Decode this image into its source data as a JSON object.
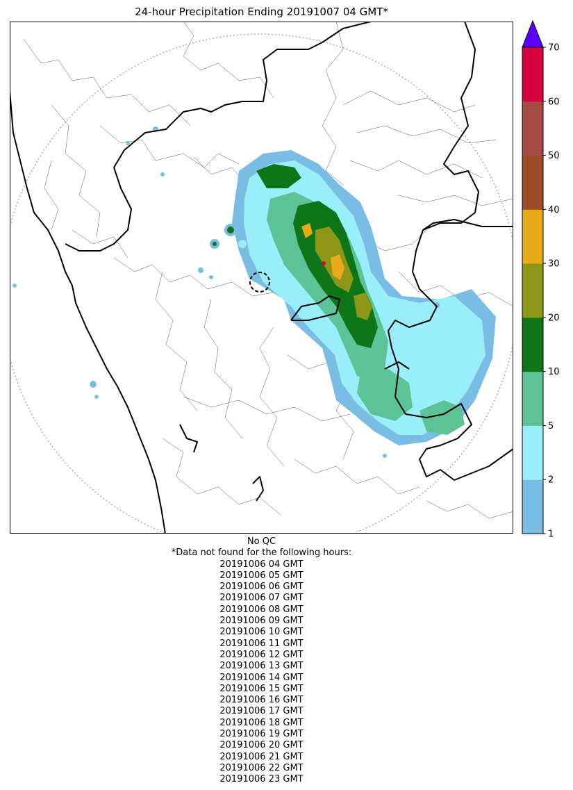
{
  "title": "24-hour Precipitation Ending 20191007 04 GMT*",
  "colorbar": {
    "ticks": [
      "1",
      "2",
      "5",
      "10",
      "20",
      "30",
      "40",
      "50",
      "60",
      "70"
    ],
    "bin_colors": [
      "#79bde4",
      "#99eef9",
      "#5cc396",
      "#0f7519",
      "#8e9618",
      "#e7aa19",
      "#9e4d29",
      "#a44a44",
      "#d6003f"
    ],
    "overflow_color": "#5a00ff"
  },
  "colors": {
    "light_blue": "#79bde4",
    "cyan": "#99eef9",
    "light_green": "#5cc396",
    "dark_green": "#0f7519",
    "olive": "#8e9618",
    "orange": "#e7aa19",
    "red": "#d6003f"
  },
  "notes": {
    "qc": "No QC",
    "header": "*Data not found for the following hours:",
    "hours": [
      "20191006 04 GMT",
      "20191006 05 GMT",
      "20191006 06 GMT",
      "20191006 07 GMT",
      "20191006 08 GMT",
      "20191006 09 GMT",
      "20191006 10 GMT",
      "20191006 11 GMT",
      "20191006 12 GMT",
      "20191006 13 GMT",
      "20191006 14 GMT",
      "20191006 15 GMT",
      "20191006 16 GMT",
      "20191006 17 GMT",
      "20191006 18 GMT",
      "20191006 19 GMT",
      "20191006 20 GMT",
      "20191006 21 GMT",
      "20191006 22 GMT",
      "20191006 23 GMT"
    ]
  }
}
